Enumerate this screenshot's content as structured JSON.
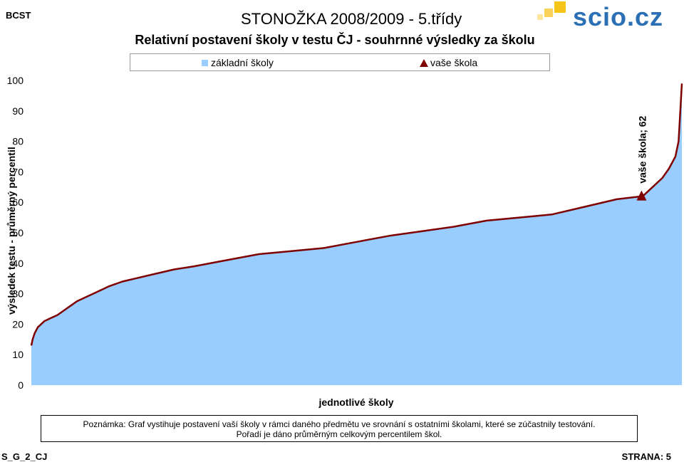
{
  "header": {
    "corner_label": "BCST",
    "doc_title": "STONOŽKA 2008/2009 - 5.třídy",
    "logo_text": "scio.cz"
  },
  "footer": {
    "left": "S_G_2_CJ",
    "right": "STRANA: 5"
  },
  "note": {
    "line1": "Poznámka: Graf vystihuje postavení vaší školy v rámci daného předmětu ve srovnání s ostatními školami, které se zúčastnily testování.",
    "line2": "Pořadí je dáno průměrným celkovým percentilem škol."
  },
  "colors": {
    "area_fill": "#99ccff",
    "line": "#7f0000",
    "marker": "#7f0000",
    "logo_blue": "#2b6fb5",
    "logo_yellow": "#f5c518"
  },
  "chart_data": {
    "type": "area",
    "title": "Relativní postavení školy v testu ČJ - souhrnné výsledky za školu",
    "xlabel": "jednotlivé školy",
    "ylabel": "výsledek testu - průměrný percentil",
    "ylim": [
      0,
      100
    ],
    "yticks": [
      0,
      10,
      20,
      30,
      40,
      50,
      60,
      70,
      80,
      90,
      100
    ],
    "grid": false,
    "legend": {
      "position": "top",
      "entries": [
        "základní školy",
        "vaše škola"
      ]
    },
    "series": [
      {
        "name": "základní školy",
        "type": "area",
        "x": [
          0,
          0.2,
          0.5,
          1,
          1.5,
          2,
          3,
          4,
          5,
          6,
          7,
          8,
          10,
          12,
          14,
          16,
          18,
          20,
          22,
          25,
          30,
          35,
          40,
          45,
          50,
          55,
          60,
          65,
          70,
          75,
          80,
          85,
          90,
          94,
          95,
          96,
          97,
          98,
          99,
          99.5,
          100
        ],
        "values": [
          13,
          15,
          17,
          19,
          20,
          21,
          22,
          23,
          24.5,
          26,
          27.5,
          28.5,
          30.5,
          32.5,
          34,
          35,
          36,
          37,
          38,
          39,
          41,
          43,
          44,
          45,
          47,
          49,
          50.5,
          52,
          54,
          55,
          56,
          58.5,
          61,
          62,
          64,
          66,
          68,
          71,
          75,
          80,
          99
        ]
      },
      {
        "name": "vaše škola",
        "type": "marker",
        "x": [
          93.8
        ],
        "values": [
          62
        ],
        "label": "vaše škola; 62"
      }
    ]
  }
}
